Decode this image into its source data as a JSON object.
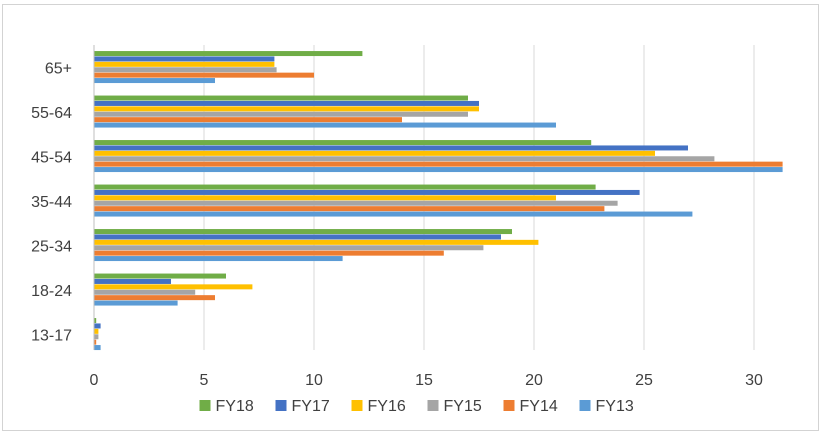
{
  "chart_data": {
    "type": "bar",
    "orientation": "horizontal",
    "categories": [
      "65+",
      "55-64",
      "45-54",
      "35-44",
      "25-34",
      "18-24",
      "13-17"
    ],
    "series": [
      {
        "name": "FY18",
        "color": "#70ad47",
        "values": [
          12.2,
          17.0,
          22.6,
          22.8,
          19.0,
          6.0,
          0.1
        ]
      },
      {
        "name": "FY17",
        "color": "#4472c4",
        "values": [
          8.2,
          17.5,
          27.0,
          24.8,
          18.5,
          3.5,
          0.3
        ]
      },
      {
        "name": "FY16",
        "color": "#ffc000",
        "values": [
          8.2,
          17.5,
          25.5,
          21.0,
          20.2,
          7.2,
          0.2
        ]
      },
      {
        "name": "FY15",
        "color": "#a5a5a5",
        "values": [
          8.3,
          17.0,
          28.2,
          23.8,
          17.7,
          4.6,
          0.2
        ]
      },
      {
        "name": "FY14",
        "color": "#ed7d31",
        "values": [
          10.0,
          14.0,
          31.3,
          23.2,
          15.9,
          5.5,
          0.1
        ]
      },
      {
        "name": "FY13",
        "color": "#5b9bd5",
        "values": [
          5.5,
          21.0,
          31.3,
          27.2,
          11.3,
          3.8,
          0.3
        ]
      }
    ],
    "xlim": [
      0,
      32
    ],
    "xticks": [
      0,
      5,
      10,
      15,
      20,
      25,
      30
    ],
    "grid": true,
    "legend": "bottom",
    "title": "",
    "xlabel": "",
    "ylabel": ""
  }
}
